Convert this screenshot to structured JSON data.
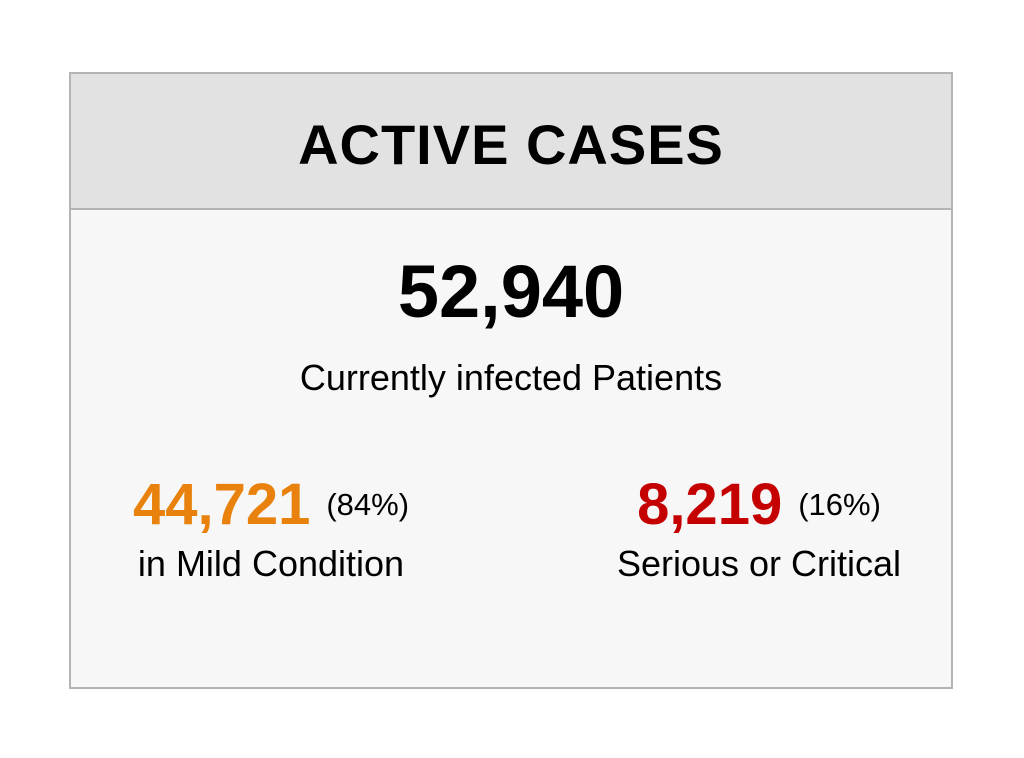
{
  "card": {
    "title": "ACTIVE CASES"
  },
  "total": {
    "value": "52,940",
    "label": "Currently infected Patients"
  },
  "mild": {
    "value": "44,721",
    "percent": "(84%)",
    "label": "in Mild Condition",
    "color": "#e8820c"
  },
  "serious": {
    "value": "8,219",
    "percent": "(16%)",
    "label": "Serious or Critical",
    "color": "#c40000"
  }
}
